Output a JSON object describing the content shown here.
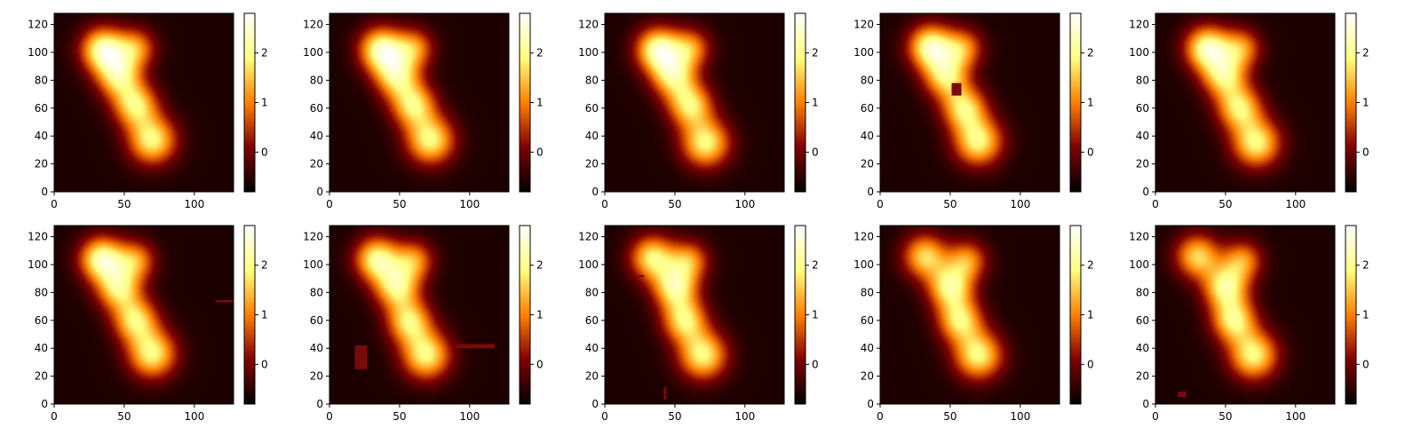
{
  "chart_data": {
    "type": "heatmap",
    "layout": {
      "rows": 2,
      "cols": 5
    },
    "colormap": "afmhot",
    "panels": [
      {
        "row": 0,
        "col": 0,
        "xlim": [
          0,
          128
        ],
        "ylim": [
          0,
          128
        ],
        "xticks": [
          0,
          50,
          100
        ],
        "yticks": [
          0,
          20,
          40,
          60,
          80,
          100,
          120
        ],
        "colorbar": {
          "ticks": [
            0,
            1,
            2
          ],
          "vmin": -0.8,
          "vmax": 2.8
        },
        "blobs": [
          [
            35,
            102,
            2.8,
            11
          ],
          [
            58,
            103,
            1.7,
            10
          ],
          [
            46,
            83,
            2.3,
            11
          ],
          [
            58,
            62,
            2.3,
            11
          ],
          [
            70,
            37,
            2.5,
            12
          ]
        ],
        "masks": []
      },
      {
        "row": 0,
        "col": 1,
        "xlim": [
          0,
          128
        ],
        "ylim": [
          0,
          128
        ],
        "xticks": [
          0,
          50,
          100
        ],
        "yticks": [
          0,
          20,
          40,
          60,
          80,
          100,
          120
        ],
        "colorbar": {
          "ticks": [
            0,
            1,
            2
          ],
          "vmin": -0.8,
          "vmax": 2.8
        },
        "blobs": [
          [
            37,
            102,
            2.8,
            11
          ],
          [
            60,
            103,
            1.7,
            10
          ],
          [
            48,
            83,
            2.3,
            11
          ],
          [
            60,
            62,
            2.3,
            11
          ],
          [
            72,
            37,
            2.5,
            12
          ]
        ],
        "masks": []
      },
      {
        "row": 0,
        "col": 2,
        "xlim": [
          0,
          128
        ],
        "ylim": [
          0,
          128
        ],
        "xticks": [
          0,
          50,
          100
        ],
        "yticks": [
          0,
          20,
          40,
          60,
          80,
          100,
          120
        ],
        "colorbar": {
          "ticks": [
            0,
            1,
            2
          ],
          "vmin": -0.8,
          "vmax": 2.8
        },
        "blobs": [
          [
            38,
            102,
            2.8,
            11
          ],
          [
            61,
            103,
            1.7,
            10
          ],
          [
            49,
            83,
            2.3,
            11
          ],
          [
            61,
            62,
            2.3,
            11
          ],
          [
            72,
            35,
            2.5,
            12
          ]
        ],
        "masks": []
      },
      {
        "row": 0,
        "col": 3,
        "xlim": [
          0,
          128
        ],
        "ylim": [
          0,
          128
        ],
        "xticks": [
          0,
          50,
          100
        ],
        "yticks": [
          0,
          20,
          40,
          60,
          80,
          100,
          120
        ],
        "colorbar": {
          "ticks": [
            0,
            1,
            2
          ],
          "vmin": -0.8,
          "vmax": 2.8
        },
        "blobs": [
          [
            36,
            104,
            2.8,
            11
          ],
          [
            59,
            103,
            1.7,
            10
          ],
          [
            47,
            83,
            2.3,
            11
          ],
          [
            60,
            60,
            2.3,
            11
          ],
          [
            70,
            36,
            2.5,
            12
          ]
        ],
        "masks": [
          [
            51,
            69,
            7,
            9
          ]
        ]
      },
      {
        "row": 0,
        "col": 4,
        "xlim": [
          0,
          128
        ],
        "ylim": [
          0,
          128
        ],
        "xticks": [
          0,
          50,
          100
        ],
        "yticks": [
          0,
          20,
          40,
          60,
          80,
          100,
          120
        ],
        "colorbar": {
          "ticks": [
            0,
            1,
            2
          ],
          "vmin": -0.8,
          "vmax": 2.8
        },
        "blobs": [
          [
            37,
            103,
            2.8,
            11
          ],
          [
            61,
            103,
            1.7,
            10
          ],
          [
            49,
            83,
            2.3,
            11
          ],
          [
            60,
            60,
            2.3,
            11
          ],
          [
            72,
            35,
            2.5,
            12
          ]
        ],
        "masks": []
      },
      {
        "row": 1,
        "col": 0,
        "xlim": [
          0,
          128
        ],
        "ylim": [
          0,
          128
        ],
        "xticks": [
          0,
          50,
          100
        ],
        "yticks": [
          0,
          20,
          40,
          60,
          80,
          100,
          120
        ],
        "colorbar": {
          "ticks": [
            0,
            1,
            2
          ],
          "vmin": -0.8,
          "vmax": 2.8
        },
        "blobs": [
          [
            34,
            104,
            2.8,
            11
          ],
          [
            58,
            103,
            1.7,
            10
          ],
          [
            46,
            83,
            2.3,
            11
          ],
          [
            58,
            60,
            2.3,
            11
          ],
          [
            70,
            36,
            2.5,
            12
          ]
        ],
        "masks": [
          [
            115,
            73,
            13,
            1.5
          ]
        ]
      },
      {
        "row": 1,
        "col": 1,
        "xlim": [
          0,
          128
        ],
        "ylim": [
          0,
          128
        ],
        "xticks": [
          0,
          50,
          100
        ],
        "yticks": [
          0,
          20,
          40,
          60,
          80,
          100,
          120
        ],
        "colorbar": {
          "ticks": [
            0,
            1,
            2
          ],
          "vmin": -0.8,
          "vmax": 2.8
        },
        "blobs": [
          [
            34,
            104,
            2.6,
            11
          ],
          [
            60,
            103,
            1.7,
            10
          ],
          [
            48,
            84,
            2.4,
            11
          ],
          [
            57,
            59,
            2.3,
            11
          ],
          [
            69,
            35,
            2.5,
            12
          ]
        ],
        "masks": [
          [
            18,
            25,
            9,
            17
          ],
          [
            90,
            40,
            28,
            3
          ]
        ]
      },
      {
        "row": 1,
        "col": 2,
        "xlim": [
          0,
          128
        ],
        "ylim": [
          0,
          128
        ],
        "xticks": [
          0,
          50,
          100
        ],
        "yticks": [
          0,
          20,
          40,
          60,
          80,
          100,
          120
        ],
        "colorbar": {
          "ticks": [
            0,
            1,
            2
          ],
          "vmin": -0.8,
          "vmax": 2.8
        },
        "blobs": [
          [
            34,
            105,
            2.4,
            11
          ],
          [
            60,
            103,
            1.7,
            10
          ],
          [
            50,
            84,
            2.5,
            11
          ],
          [
            57,
            60,
            2.3,
            11
          ],
          [
            70,
            35,
            2.5,
            12
          ]
        ],
        "masks": [
          [
            22,
            91,
            6,
            1.5
          ],
          [
            42,
            3,
            2,
            9
          ]
        ]
      },
      {
        "row": 1,
        "col": 3,
        "xlim": [
          0,
          128
        ],
        "ylim": [
          0,
          128
        ],
        "xticks": [
          0,
          50,
          100
        ],
        "yticks": [
          0,
          20,
          40,
          60,
          80,
          100,
          120
        ],
        "colorbar": {
          "ticks": [
            0,
            1,
            2
          ],
          "vmin": -0.8,
          "vmax": 2.8
        },
        "blobs": [
          [
            32,
            106,
            2.2,
            11
          ],
          [
            62,
            103,
            1.7,
            10
          ],
          [
            50,
            84,
            2.5,
            11
          ],
          [
            57,
            60,
            2.3,
            11
          ],
          [
            70,
            35,
            2.5,
            12
          ]
        ],
        "masks": []
      },
      {
        "row": 1,
        "col": 4,
        "xlim": [
          0,
          128
        ],
        "ylim": [
          0,
          128
        ],
        "xticks": [
          0,
          50,
          100
        ],
        "yticks": [
          0,
          20,
          40,
          60,
          80,
          100,
          120
        ],
        "colorbar": {
          "ticks": [
            0,
            1,
            2
          ],
          "vmin": -0.8,
          "vmax": 2.8
        },
        "blobs": [
          [
            30,
            106,
            2.2,
            11
          ],
          [
            62,
            103,
            1.7,
            10
          ],
          [
            50,
            84,
            2.5,
            11
          ],
          [
            56,
            60,
            2.4,
            11
          ],
          [
            70,
            35,
            2.5,
            12
          ]
        ],
        "masks": [
          [
            16,
            5,
            6,
            4
          ]
        ]
      }
    ]
  }
}
